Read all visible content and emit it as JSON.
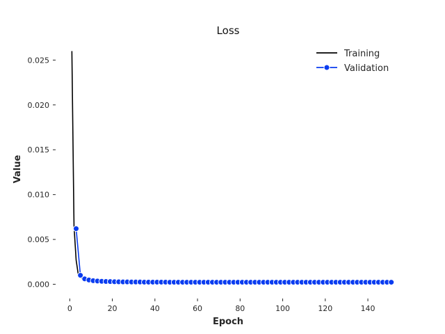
{
  "chart_data": {
    "type": "line",
    "title": "Loss",
    "xlabel": "Epoch",
    "ylabel": "Value",
    "xlim": [
      -5,
      155
    ],
    "ylim": [
      -0.0012,
      0.0265
    ],
    "x_ticks": [
      0,
      20,
      40,
      60,
      80,
      100,
      120,
      140
    ],
    "y_ticks": [
      0.0,
      0.005,
      0.01,
      0.015,
      0.02,
      0.025
    ],
    "x_tick_labels": [
      "0",
      "20",
      "40",
      "60",
      "80",
      "100",
      "120",
      "140"
    ],
    "y_tick_labels": [
      "0.000",
      "0.005",
      "0.010",
      "0.015",
      "0.020",
      "0.025"
    ],
    "grid": false,
    "legend_position": "top-right",
    "series": [
      {
        "name": "Training",
        "color": "#000000",
        "marker": "none",
        "x": [
          1,
          2,
          3,
          4,
          5,
          6,
          7,
          8,
          9,
          10,
          12,
          14,
          16,
          18,
          20,
          25,
          30,
          40,
          50,
          60,
          80,
          100,
          120,
          140,
          151
        ],
        "y": [
          0.026,
          0.0065,
          0.0027,
          0.0011,
          0.0008,
          0.0006,
          0.0005,
          0.0004,
          0.00035,
          0.0003,
          0.00027,
          0.00025,
          0.00023,
          0.00022,
          0.00021,
          0.0002,
          0.0002,
          0.0002,
          0.0002,
          0.0002,
          0.0002,
          0.0002,
          0.0002,
          0.0002,
          0.0002
        ]
      },
      {
        "name": "Validation",
        "color": "#0a3cf0",
        "marker": "circle",
        "x": [
          3,
          5,
          7,
          9,
          11,
          13,
          15,
          17,
          19,
          21,
          23,
          25,
          27,
          29,
          31,
          33,
          35,
          37,
          39,
          41,
          43,
          45,
          47,
          49,
          51,
          53,
          55,
          57,
          59,
          61,
          63,
          65,
          67,
          69,
          71,
          73,
          75,
          77,
          79,
          81,
          83,
          85,
          87,
          89,
          91,
          93,
          95,
          97,
          99,
          101,
          103,
          105,
          107,
          109,
          111,
          113,
          115,
          117,
          119,
          121,
          123,
          125,
          127,
          129,
          131,
          133,
          135,
          137,
          139,
          141,
          143,
          145,
          147,
          149,
          151
        ],
        "y": [
          0.0062,
          0.001,
          0.0006,
          0.00048,
          0.0004,
          0.00036,
          0.00033,
          0.00031,
          0.0003,
          0.00028,
          0.00027,
          0.00026,
          0.00026,
          0.00025,
          0.00025,
          0.00025,
          0.00024,
          0.00024,
          0.00024,
          0.00024,
          0.00024,
          0.00024,
          0.00023,
          0.00023,
          0.00023,
          0.00023,
          0.00023,
          0.00023,
          0.00023,
          0.00023,
          0.00023,
          0.00023,
          0.00023,
          0.00023,
          0.00023,
          0.00023,
          0.00023,
          0.00023,
          0.00023,
          0.00023,
          0.00023,
          0.00023,
          0.00023,
          0.00023,
          0.00023,
          0.00023,
          0.00023,
          0.00023,
          0.00023,
          0.00023,
          0.00023,
          0.00023,
          0.00023,
          0.00023,
          0.00023,
          0.00023,
          0.00023,
          0.00023,
          0.00023,
          0.00023,
          0.00023,
          0.00023,
          0.00023,
          0.00023,
          0.00023,
          0.00023,
          0.00023,
          0.00023,
          0.00023,
          0.00023,
          0.00023,
          0.00023,
          0.00023,
          0.00023,
          0.00023
        ]
      }
    ]
  }
}
